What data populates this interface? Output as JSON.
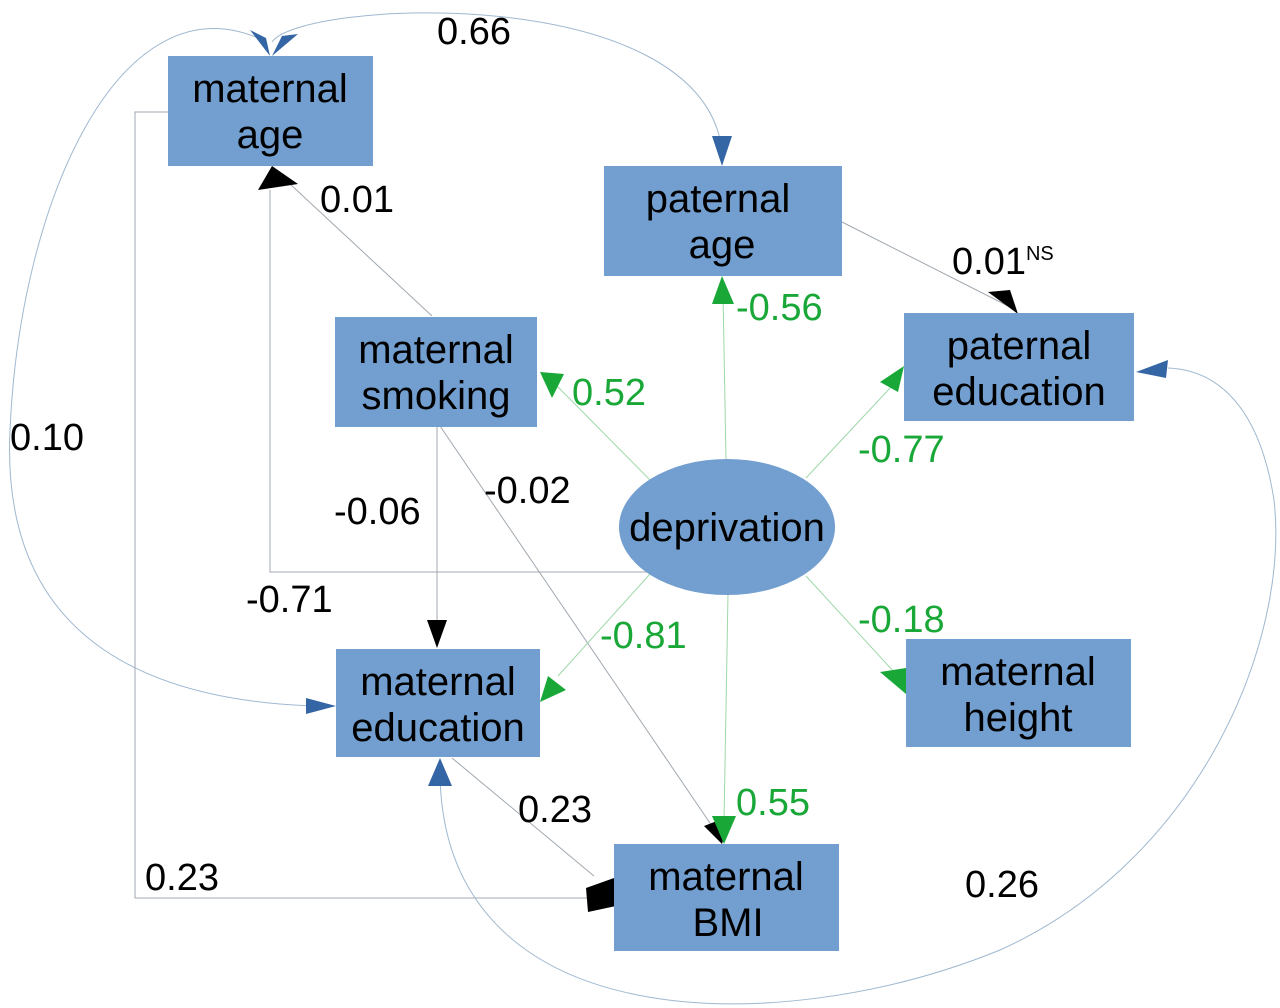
{
  "colors": {
    "box_fill": "#729fcf",
    "ellipse_fill": "#729fcf",
    "black_path": "#000000",
    "green_path": "#19a838",
    "blue_arrow": "#3465a4",
    "thin_line": "#a0a8b0"
  },
  "nodes": {
    "maternal_age": [
      "maternal",
      "age"
    ],
    "paternal_age": [
      "paternal",
      "age"
    ],
    "maternal_smoking": [
      "maternal",
      "smoking"
    ],
    "paternal_education": [
      "paternal",
      "education"
    ],
    "deprivation": [
      "deprivation"
    ],
    "maternal_education": [
      "maternal",
      "education"
    ],
    "maternal_height": [
      "maternal",
      "height"
    ],
    "maternal_bmi": [
      "maternal",
      "BMI"
    ]
  },
  "coefficients": {
    "mage_page": "0.66",
    "msmoking_mage": "0.01",
    "page_peducation": "0.01",
    "page_peducation_sup": "NS",
    "dep_page": "-0.56",
    "dep_msmoking": "0.52",
    "mage_meducation": "0.10",
    "dep_peducation": "-0.77",
    "msmoking_meducation": "-0.06",
    "msmoking_mbmi": "-0.02",
    "dep_mage": "-0.71",
    "dep_meducation": "-0.81",
    "dep_mheight": "-0.18",
    "dep_mbmi": "0.55",
    "meducation_mbmi": "0.23",
    "mage_mbmi": "0.23",
    "meducation_peducation": "0.26"
  }
}
